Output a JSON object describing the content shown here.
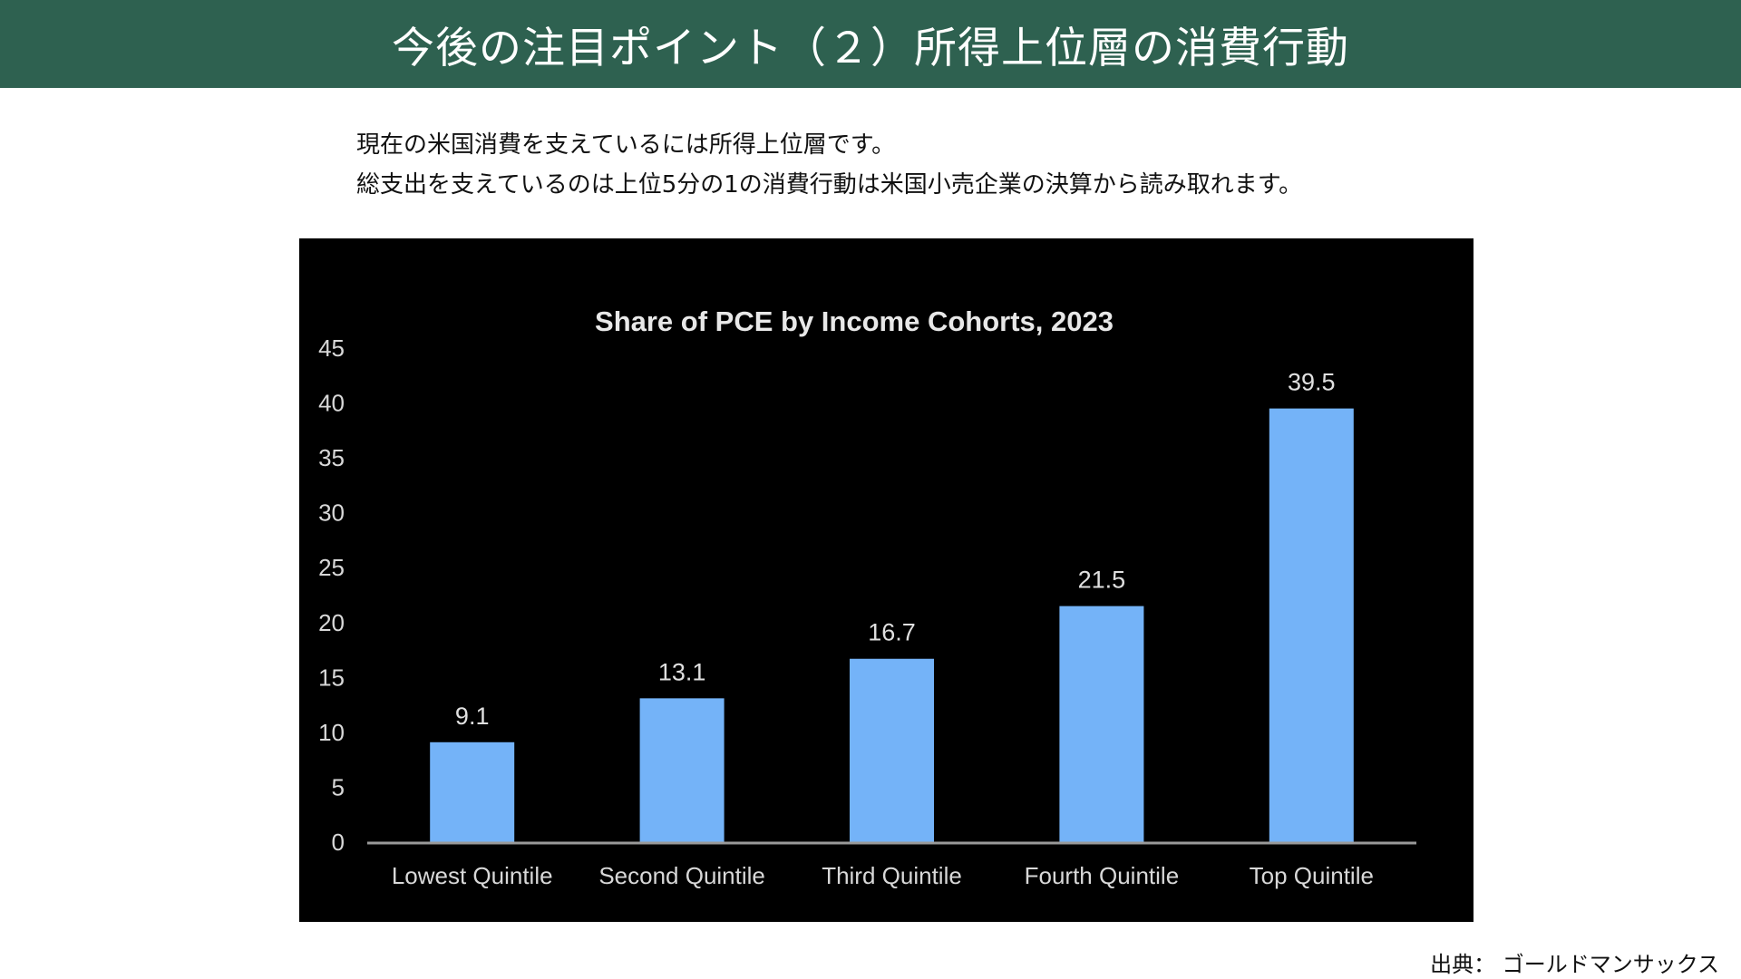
{
  "header": {
    "title": "今後の注目ポイント（２）所得上位層の消費行動",
    "background_color": "#2e6150"
  },
  "description": {
    "line1": "現在の米国消費を支えているには所得上位層です。",
    "line2": "総支出を支えているのは上位5分の1の消費行動は米国小売企業の決算から読み取れます。"
  },
  "chart_data": {
    "type": "bar",
    "title": "Share of PCE by Income Cohorts, 2023",
    "categories": [
      "Lowest Quintile",
      "Second Quintile",
      "Third Quintile",
      "Fourth Quintile",
      "Top Quintile"
    ],
    "values": [
      9.1,
      13.1,
      16.7,
      21.5,
      39.5
    ],
    "data_labels": [
      "9.1",
      "13.1",
      "16.7",
      "21.5",
      "39.5"
    ],
    "yticks": [
      0,
      5,
      10,
      15,
      20,
      25,
      30,
      35,
      40,
      45
    ],
    "ylim": [
      0,
      45
    ],
    "xlabel": "",
    "ylabel": "",
    "grid": false,
    "bar_color": "#74b3f8",
    "background_color": "#000000"
  },
  "source": {
    "text": "出典： ゴールドマンサックス"
  }
}
